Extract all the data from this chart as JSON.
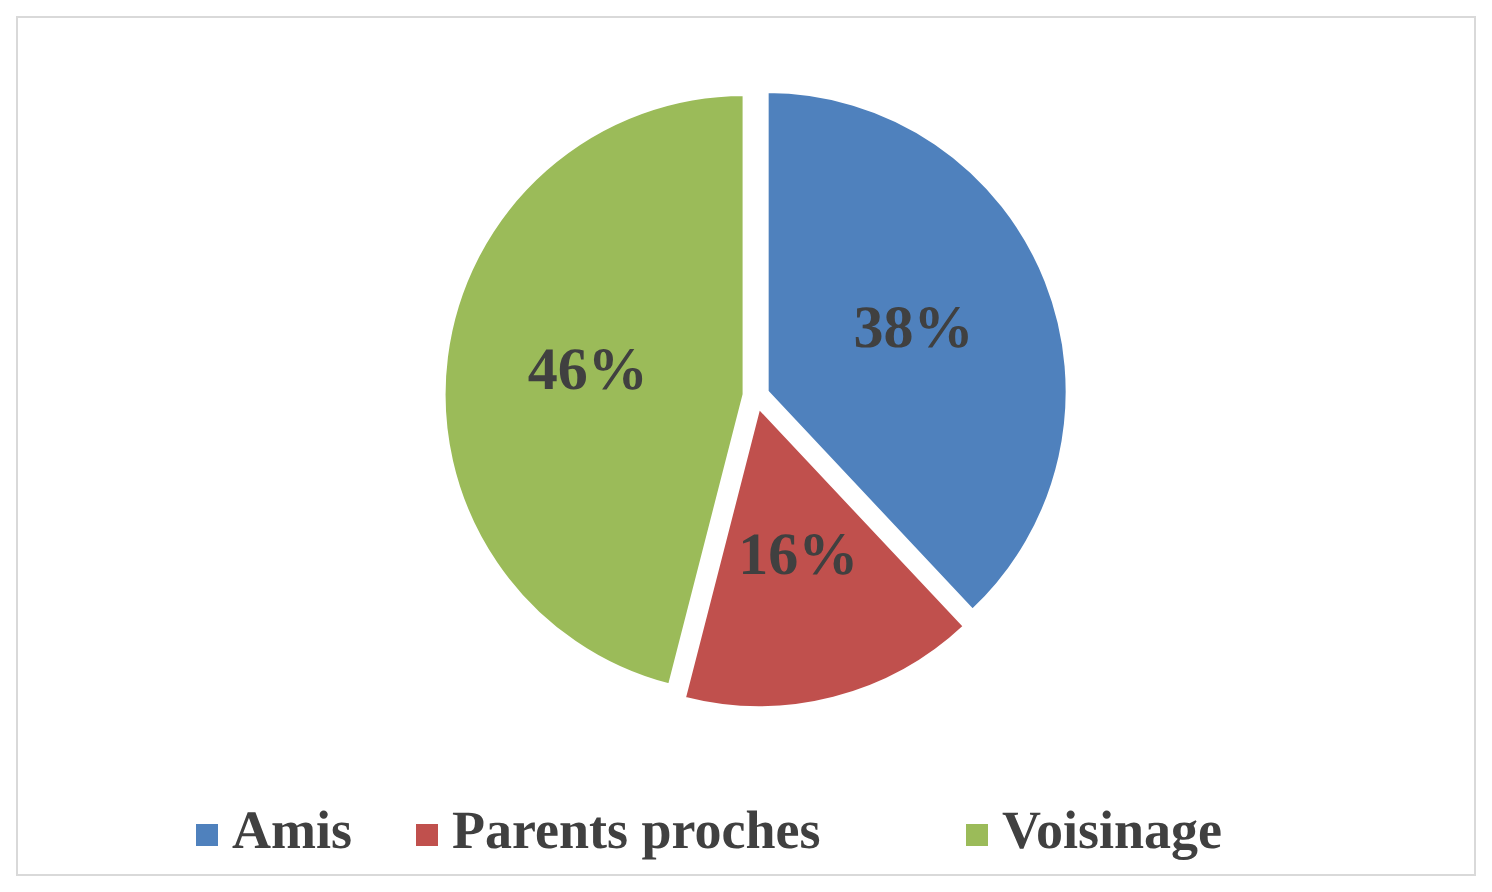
{
  "chart_data": {
    "type": "pie",
    "categories": [
      "Amis",
      "Parents proches",
      "Voisinage"
    ],
    "values": [
      38,
      16,
      46
    ],
    "colors": [
      "#4f81bd",
      "#c0504d",
      "#9bbb59"
    ],
    "value_labels": [
      "38%",
      "16%",
      "46%"
    ],
    "legend": "bottom"
  }
}
